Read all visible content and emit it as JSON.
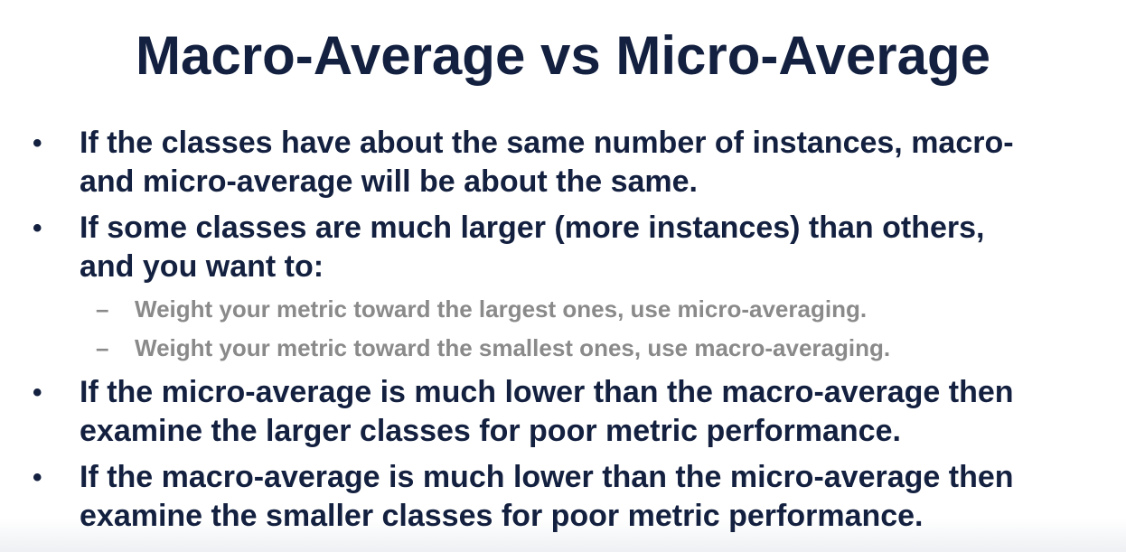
{
  "slide": {
    "title": "Macro-Average vs Micro-Average",
    "bullets": [
      {
        "marker": "•",
        "lines": [
          "If the classes have about the same number of instances, macro-",
          "and micro-average will be about the same."
        ]
      },
      {
        "marker": "•",
        "lines": [
          "If some classes are much larger (more instances) than others,",
          "and you want to:"
        ],
        "sub_items": [
          {
            "marker": "–",
            "text": "Weight your metric toward the largest ones, use micro-averaging."
          },
          {
            "marker": "–",
            "text": "Weight your metric toward the smallest ones, use macro-averaging."
          }
        ]
      },
      {
        "marker": "•",
        "lines": [
          "If the micro-average is much lower than the macro-average then",
          "examine the larger classes for poor metric performance."
        ]
      },
      {
        "marker": "•",
        "lines": [
          "If the macro-average is much lower than the micro-average then",
          "examine the smaller classes for poor metric performance."
        ]
      }
    ]
  },
  "colors": {
    "title": "#13203f",
    "body": "#13203f",
    "sub_item": "#8a8a8a",
    "background": "#ffffff"
  }
}
